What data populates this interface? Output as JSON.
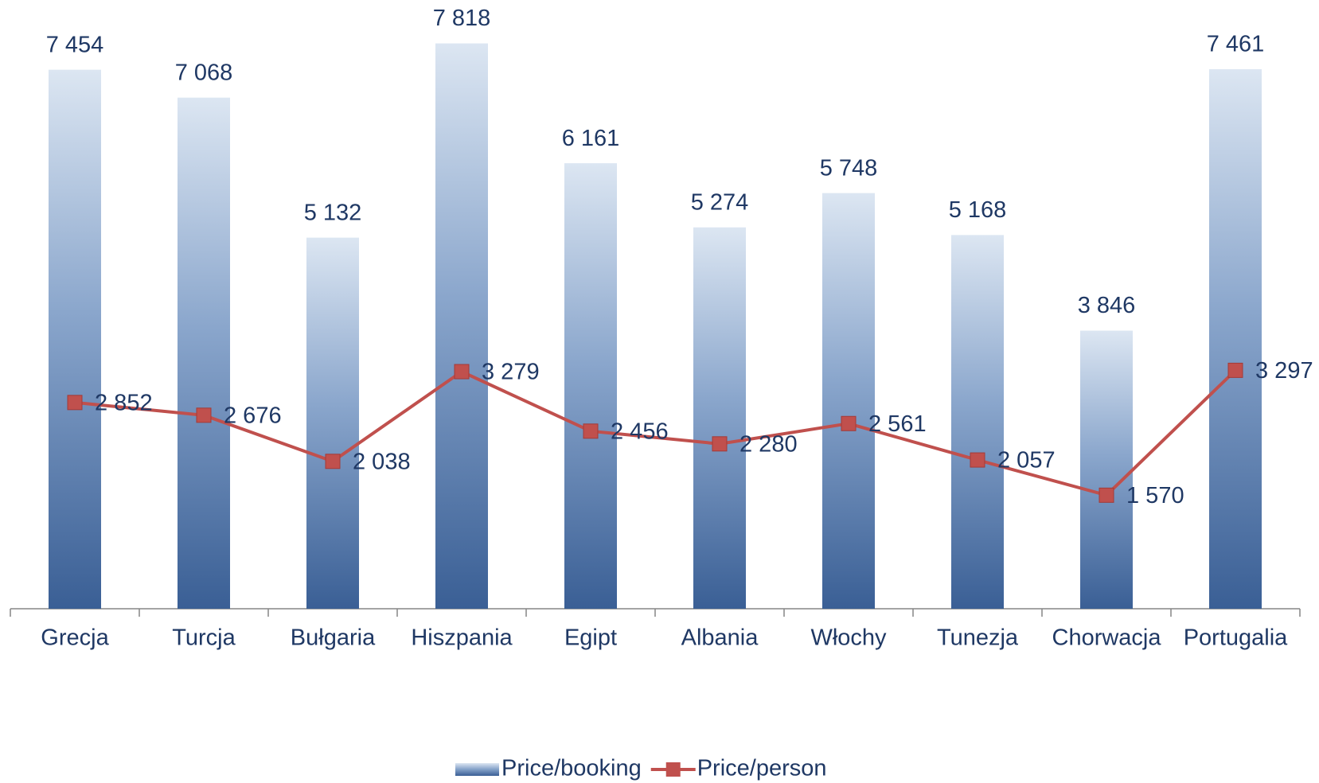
{
  "chart_data": {
    "type": "bar_line",
    "categories": [
      "Grecja",
      "Turcja",
      "Bułgaria",
      "Hiszpania",
      "Egipt",
      "Albania",
      "Włochy",
      "Tunezja",
      "Chorwacja",
      "Portugalia"
    ],
    "series": [
      {
        "name": "Price/booking",
        "type": "bar",
        "color": "#3a5f95",
        "values": [
          7454,
          7068,
          5132,
          7818,
          6161,
          5274,
          5748,
          5168,
          3846,
          7461
        ],
        "value_labels": [
          "7 454",
          "7 068",
          "5 132",
          "7 818",
          "6 161",
          "5 274",
          "5 748",
          "5 168",
          "3 846",
          "7 461"
        ]
      },
      {
        "name": "Price/person",
        "type": "line",
        "color": "#c0504d",
        "values": [
          2852,
          2676,
          2038,
          3279,
          2456,
          2280,
          2561,
          2057,
          1570,
          3297
        ],
        "value_labels": [
          "2 852",
          "2 676",
          "2 038",
          "3 279",
          "2 456",
          "2 280",
          "2 561",
          "2 057",
          "1 570",
          "3 297"
        ]
      }
    ],
    "ylim": [
      0,
      8000
    ],
    "legend": "bottom"
  }
}
